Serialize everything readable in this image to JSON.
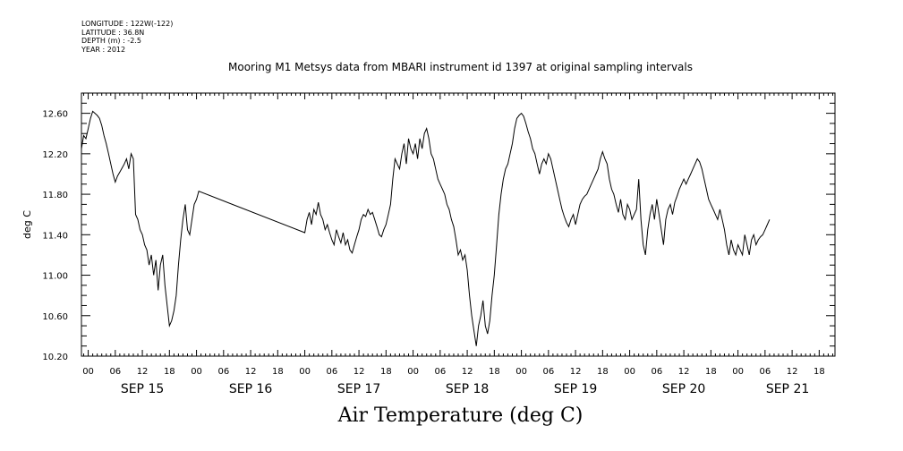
{
  "header": {
    "longitude": "LONGITUDE : 122W(-122)",
    "latitude": "LATITUDE : 36.8N",
    "depth": "DEPTH (m) : -2.5",
    "year": "YEAR : 2012"
  },
  "chart_data": {
    "type": "line",
    "title": "Mooring M1 Metsys data from MBARI instrument id 1397 at original sampling intervals",
    "xlabel": "Air Temperature (deg C)",
    "ylabel": "deg C",
    "x_units": "hours since Sep 15 00:00 (2012)",
    "xlim": [
      -1.5,
      165.5
    ],
    "ylim": [
      10.2,
      12.8
    ],
    "y_ticks": [
      10.2,
      10.6,
      11.0,
      11.4,
      11.8,
      12.2,
      12.6
    ],
    "y_tick_labels": [
      "10.20",
      "10.60",
      "11.00",
      "11.40",
      "11.80",
      "12.20",
      "12.60"
    ],
    "x_hour_ticks": [
      0,
      6,
      12,
      18,
      24,
      30,
      36,
      42,
      48,
      54,
      60,
      66,
      72,
      78,
      84,
      90,
      96,
      102,
      108,
      114,
      120,
      126,
      132,
      138,
      144,
      150,
      156,
      162
    ],
    "x_hour_labels": [
      "00",
      "06",
      "12",
      "18",
      "00",
      "06",
      "12",
      "18",
      "00",
      "06",
      "12",
      "18",
      "00",
      "06",
      "12",
      "18",
      "00",
      "06",
      "12",
      "18",
      "00",
      "06",
      "12",
      "18",
      "00",
      "06",
      "12",
      "18"
    ],
    "day_labels": [
      {
        "text": "SEP 15",
        "hour": 12
      },
      {
        "text": "SEP 16",
        "hour": 36
      },
      {
        "text": "SEP 17",
        "hour": 60
      },
      {
        "text": "SEP 18",
        "hour": 84
      },
      {
        "text": "SEP 19",
        "hour": 108
      },
      {
        "text": "SEP 20",
        "hour": 132
      },
      {
        "text": "SEP 21",
        "hour": 155
      }
    ],
    "series": [
      {
        "points": [
          [
            -1.5,
            12.25
          ],
          [
            -1,
            12.38
          ],
          [
            -0.5,
            12.35
          ],
          [
            0,
            12.45
          ],
          [
            0.5,
            12.55
          ],
          [
            1,
            12.62
          ],
          [
            1.5,
            12.6
          ],
          [
            2,
            12.58
          ],
          [
            2.5,
            12.55
          ],
          [
            3,
            12.48
          ],
          [
            3.5,
            12.38
          ],
          [
            4,
            12.3
          ],
          [
            4.5,
            12.2
          ],
          [
            5,
            12.1
          ],
          [
            5.5,
            12.0
          ],
          [
            6,
            11.92
          ],
          [
            6.5,
            11.98
          ],
          [
            7,
            12.02
          ],
          [
            7.5,
            12.06
          ],
          [
            8,
            12.1
          ],
          [
            8.5,
            12.15
          ],
          [
            9,
            12.05
          ],
          [
            9.5,
            12.2
          ],
          [
            10,
            12.15
          ],
          [
            10.5,
            11.6
          ],
          [
            11,
            11.55
          ],
          [
            11.5,
            11.45
          ],
          [
            12,
            11.4
          ],
          [
            12.5,
            11.3
          ],
          [
            13,
            11.25
          ],
          [
            13.5,
            11.1
          ],
          [
            14,
            11.2
          ],
          [
            14.5,
            11.0
          ],
          [
            15,
            11.15
          ],
          [
            15.5,
            10.85
          ],
          [
            16,
            11.1
          ],
          [
            16.5,
            11.2
          ],
          [
            17,
            10.9
          ],
          [
            17.5,
            10.7
          ],
          [
            18,
            10.5
          ],
          [
            18.5,
            10.55
          ],
          [
            19,
            10.65
          ],
          [
            19.5,
            10.8
          ],
          [
            20,
            11.1
          ],
          [
            20.5,
            11.35
          ],
          [
            21,
            11.55
          ],
          [
            21.5,
            11.7
          ],
          [
            22,
            11.45
          ],
          [
            22.5,
            11.4
          ],
          [
            23,
            11.55
          ],
          [
            23.5,
            11.7
          ],
          [
            24,
            11.75
          ],
          [
            24.5,
            11.83
          ],
          [
            48,
            11.42
          ],
          [
            48.5,
            11.55
          ],
          [
            49,
            11.62
          ],
          [
            49.5,
            11.5
          ],
          [
            50,
            11.65
          ],
          [
            50.5,
            11.6
          ],
          [
            51,
            11.72
          ],
          [
            51.5,
            11.6
          ],
          [
            52,
            11.55
          ],
          [
            52.5,
            11.45
          ],
          [
            53,
            11.5
          ],
          [
            53.5,
            11.42
          ],
          [
            54,
            11.35
          ],
          [
            54.5,
            11.3
          ],
          [
            55,
            11.45
          ],
          [
            55.5,
            11.38
          ],
          [
            56,
            11.32
          ],
          [
            56.5,
            11.42
          ],
          [
            57,
            11.3
          ],
          [
            57.5,
            11.35
          ],
          [
            58,
            11.25
          ],
          [
            58.5,
            11.22
          ],
          [
            59,
            11.3
          ],
          [
            59.5,
            11.38
          ],
          [
            60,
            11.45
          ],
          [
            60.5,
            11.55
          ],
          [
            61,
            11.6
          ],
          [
            61.5,
            11.58
          ],
          [
            62,
            11.65
          ],
          [
            62.5,
            11.6
          ],
          [
            63,
            11.62
          ],
          [
            63.5,
            11.55
          ],
          [
            64,
            11.48
          ],
          [
            64.5,
            11.4
          ],
          [
            65,
            11.38
          ],
          [
            65.5,
            11.45
          ],
          [
            66,
            11.5
          ],
          [
            66.5,
            11.6
          ],
          [
            67,
            11.7
          ],
          [
            67.5,
            11.95
          ],
          [
            68,
            12.15
          ],
          [
            68.5,
            12.1
          ],
          [
            69,
            12.05
          ],
          [
            69.5,
            12.2
          ],
          [
            70,
            12.3
          ],
          [
            70.5,
            12.1
          ],
          [
            71,
            12.35
          ],
          [
            71.5,
            12.25
          ],
          [
            72,
            12.2
          ],
          [
            72.5,
            12.3
          ],
          [
            73,
            12.15
          ],
          [
            73.5,
            12.35
          ],
          [
            74,
            12.25
          ],
          [
            74.5,
            12.4
          ],
          [
            75,
            12.45
          ],
          [
            75.5,
            12.35
          ],
          [
            76,
            12.2
          ],
          [
            76.5,
            12.15
          ],
          [
            77,
            12.05
          ],
          [
            77.5,
            11.95
          ],
          [
            78,
            11.9
          ],
          [
            78.5,
            11.85
          ],
          [
            79,
            11.8
          ],
          [
            79.5,
            11.7
          ],
          [
            80,
            11.65
          ],
          [
            80.5,
            11.55
          ],
          [
            81,
            11.48
          ],
          [
            81.5,
            11.35
          ],
          [
            82,
            11.2
          ],
          [
            82.5,
            11.25
          ],
          [
            83,
            11.15
          ],
          [
            83.5,
            11.2
          ],
          [
            84,
            11.05
          ],
          [
            84.5,
            10.8
          ],
          [
            85,
            10.6
          ],
          [
            85.5,
            10.45
          ],
          [
            86,
            10.3
          ],
          [
            86.5,
            10.5
          ],
          [
            87,
            10.6
          ],
          [
            87.5,
            10.75
          ],
          [
            88,
            10.5
          ],
          [
            88.5,
            10.42
          ],
          [
            89,
            10.55
          ],
          [
            89.5,
            10.8
          ],
          [
            90,
            11.0
          ],
          [
            90.5,
            11.3
          ],
          [
            91,
            11.6
          ],
          [
            91.5,
            11.8
          ],
          [
            92,
            11.95
          ],
          [
            92.5,
            12.05
          ],
          [
            93,
            12.1
          ],
          [
            93.5,
            12.2
          ],
          [
            94,
            12.3
          ],
          [
            94.5,
            12.45
          ],
          [
            95,
            12.55
          ],
          [
            95.5,
            12.58
          ],
          [
            96,
            12.6
          ],
          [
            96.5,
            12.57
          ],
          [
            97,
            12.5
          ],
          [
            97.5,
            12.42
          ],
          [
            98,
            12.35
          ],
          [
            98.5,
            12.25
          ],
          [
            99,
            12.2
          ],
          [
            99.5,
            12.1
          ],
          [
            100,
            12.0
          ],
          [
            100.5,
            12.1
          ],
          [
            101,
            12.15
          ],
          [
            101.5,
            12.1
          ],
          [
            102,
            12.2
          ],
          [
            102.5,
            12.15
          ],
          [
            103,
            12.05
          ],
          [
            103.5,
            11.95
          ],
          [
            104,
            11.85
          ],
          [
            104.5,
            11.75
          ],
          [
            105,
            11.65
          ],
          [
            105.5,
            11.58
          ],
          [
            106,
            11.52
          ],
          [
            106.5,
            11.48
          ],
          [
            107,
            11.55
          ],
          [
            107.5,
            11.6
          ],
          [
            108,
            11.5
          ],
          [
            108.5,
            11.6
          ],
          [
            109,
            11.7
          ],
          [
            109.5,
            11.75
          ],
          [
            110,
            11.78
          ],
          [
            110.5,
            11.8
          ],
          [
            111,
            11.85
          ],
          [
            111.5,
            11.9
          ],
          [
            112,
            11.95
          ],
          [
            112.5,
            12.0
          ],
          [
            113,
            12.05
          ],
          [
            113.5,
            12.15
          ],
          [
            114,
            12.22
          ],
          [
            114.5,
            12.15
          ],
          [
            115,
            12.1
          ],
          [
            115.5,
            11.95
          ],
          [
            116,
            11.85
          ],
          [
            116.5,
            11.8
          ],
          [
            117,
            11.7
          ],
          [
            117.5,
            11.62
          ],
          [
            118,
            11.75
          ],
          [
            118.5,
            11.6
          ],
          [
            119,
            11.55
          ],
          [
            119.5,
            11.7
          ],
          [
            120,
            11.65
          ],
          [
            120.5,
            11.55
          ],
          [
            121,
            11.6
          ],
          [
            121.5,
            11.65
          ],
          [
            122,
            11.95
          ],
          [
            122.5,
            11.55
          ],
          [
            123,
            11.3
          ],
          [
            123.5,
            11.2
          ],
          [
            124,
            11.45
          ],
          [
            124.5,
            11.6
          ],
          [
            125,
            11.7
          ],
          [
            125.5,
            11.55
          ],
          [
            126,
            11.75
          ],
          [
            126.5,
            11.6
          ],
          [
            127,
            11.45
          ],
          [
            127.5,
            11.3
          ],
          [
            128,
            11.55
          ],
          [
            128.5,
            11.65
          ],
          [
            129,
            11.7
          ],
          [
            129.5,
            11.6
          ],
          [
            130,
            11.72
          ],
          [
            130.5,
            11.78
          ],
          [
            131,
            11.85
          ],
          [
            131.5,
            11.9
          ],
          [
            132,
            11.95
          ],
          [
            132.5,
            11.9
          ],
          [
            133,
            11.95
          ],
          [
            133.5,
            12.0
          ],
          [
            134,
            12.05
          ],
          [
            134.5,
            12.1
          ],
          [
            135,
            12.15
          ],
          [
            135.5,
            12.12
          ],
          [
            136,
            12.05
          ],
          [
            136.5,
            11.95
          ],
          [
            137,
            11.85
          ],
          [
            137.5,
            11.75
          ],
          [
            138,
            11.7
          ],
          [
            138.5,
            11.65
          ],
          [
            139,
            11.6
          ],
          [
            139.5,
            11.55
          ],
          [
            140,
            11.65
          ],
          [
            140.5,
            11.55
          ],
          [
            141,
            11.45
          ],
          [
            141.5,
            11.3
          ],
          [
            142,
            11.2
          ],
          [
            142.5,
            11.35
          ],
          [
            143,
            11.25
          ],
          [
            143.5,
            11.2
          ],
          [
            144,
            11.3
          ],
          [
            144.5,
            11.25
          ],
          [
            145,
            11.2
          ],
          [
            145.5,
            11.4
          ],
          [
            146,
            11.3
          ],
          [
            146.5,
            11.2
          ],
          [
            147,
            11.35
          ],
          [
            147.5,
            11.4
          ],
          [
            148,
            11.3
          ],
          [
            148.5,
            11.35
          ],
          [
            149,
            11.38
          ],
          [
            149.5,
            11.4
          ],
          [
            150,
            11.45
          ],
          [
            150.5,
            11.5
          ],
          [
            151,
            11.55
          ]
        ]
      }
    ]
  }
}
